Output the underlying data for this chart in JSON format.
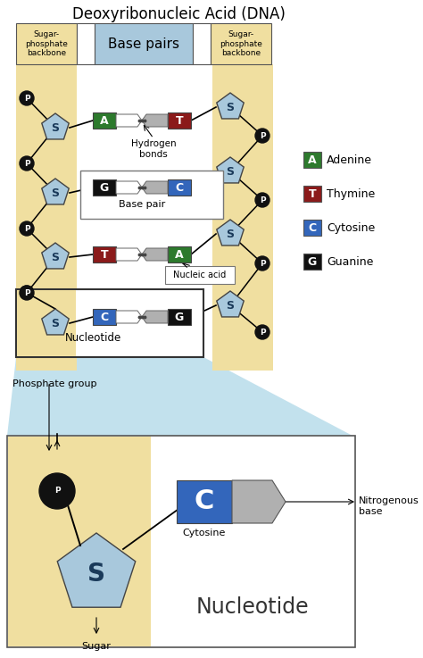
{
  "title": "Deoxyribonucleic Acid (DNA)",
  "bg_color": "#ffffff",
  "tan_color": "#f0dfa0",
  "blue_light": "#a8c8dc",
  "green_adenine": "#2d7a2d",
  "red_thymine": "#8b1a1a",
  "blue_cytosine": "#3366bb",
  "black_guanine": "#111111",
  "legend_items": [
    {
      "letter": "A",
      "label": "Adenine",
      "color": "#2d7a2d"
    },
    {
      "letter": "T",
      "label": "Thymine",
      "color": "#8b1a1a"
    },
    {
      "letter": "C",
      "label": "Cytosine",
      "color": "#3366bb"
    },
    {
      "letter": "G",
      "label": "Guanine",
      "color": "#111111"
    }
  ]
}
